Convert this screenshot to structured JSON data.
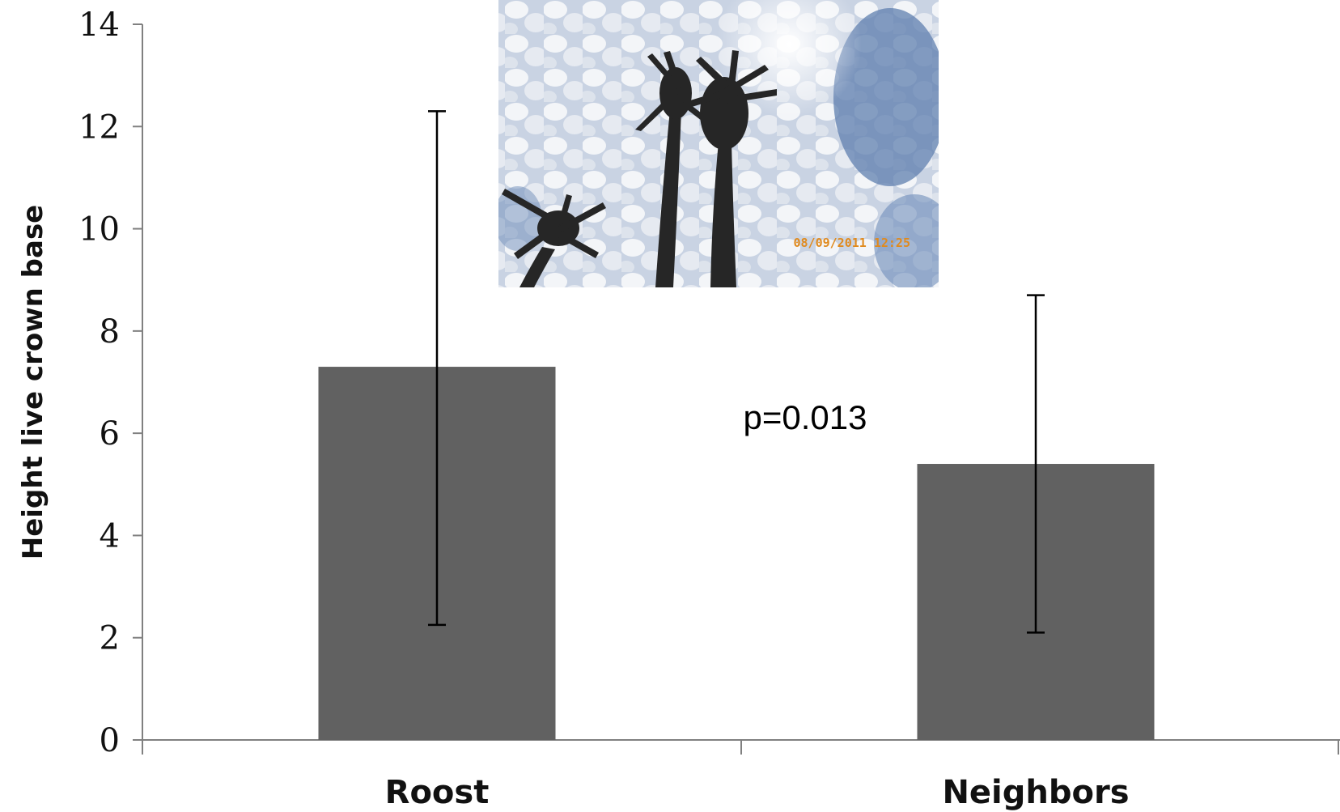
{
  "chart_data": {
    "type": "bar",
    "categories": [
      "Roost",
      "Neighbors"
    ],
    "values": [
      7.3,
      5.4
    ],
    "error_low": [
      2.25,
      2.1
    ],
    "error_high": [
      12.3,
      8.7
    ],
    "title": "",
    "xlabel": "",
    "ylabel": "Height live crown base",
    "ylim": [
      0,
      14
    ],
    "yticks": [
      0,
      2,
      4,
      6,
      8,
      10,
      12,
      14
    ],
    "grid": false,
    "annotation": "p=0.013",
    "bar_color": "#616161",
    "axis_color": "#808080"
  },
  "photo": {
    "subject": "palm-trees-against-cloudy-sky",
    "timestamp": "08/09/2011 12:25",
    "colors": {
      "sky": "#5f7faf",
      "cloud": "#eef1f5",
      "silhouette": "#262626"
    }
  }
}
